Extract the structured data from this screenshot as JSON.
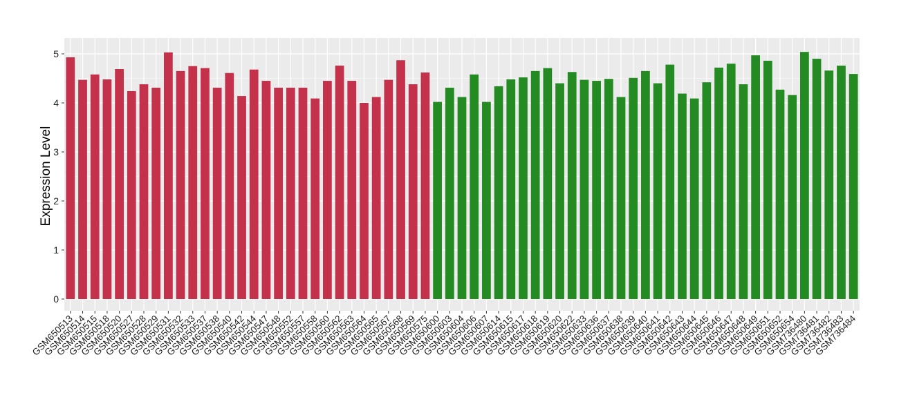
{
  "chart_data": {
    "type": "bar",
    "title": "",
    "xlabel": "",
    "ylabel": "Expression Level",
    "ylim": [
      -0.2,
      5.25
    ],
    "yticks": [
      0,
      1,
      2,
      3,
      4,
      5
    ],
    "grid": true,
    "legend": "none",
    "colors": {
      "group1": "#C3314A",
      "group2": "#238B22",
      "panel": "#EBEBEB",
      "grid": "#FFFFFF"
    },
    "categories": [
      "GSM650513",
      "GSM650514",
      "GSM650515",
      "GSM650518",
      "GSM650520",
      "GSM650527",
      "GSM650528",
      "GSM650529",
      "GSM650531",
      "GSM650532",
      "GSM650533",
      "GSM650537",
      "GSM650538",
      "GSM650540",
      "GSM650542",
      "GSM650544",
      "GSM650547",
      "GSM650548",
      "GSM650552",
      "GSM650557",
      "GSM650558",
      "GSM650560",
      "GSM650562",
      "GSM650563",
      "GSM650564",
      "GSM650565",
      "GSM650567",
      "GSM650568",
      "GSM650569",
      "GSM650575",
      "GSM650600",
      "GSM650603",
      "GSM650604",
      "GSM650606",
      "GSM650607",
      "GSM650614",
      "GSM650615",
      "GSM650617",
      "GSM650618",
      "GSM650619",
      "GSM650620",
      "GSM650622",
      "GSM650633",
      "GSM650636",
      "GSM650637",
      "GSM650638",
      "GSM650639",
      "GSM650640",
      "GSM650641",
      "GSM650642",
      "GSM650643",
      "GSM650644",
      "GSM650645",
      "GSM650646",
      "GSM650647",
      "GSM650648",
      "GSM650649",
      "GSM650651",
      "GSM650652",
      "GSM650654",
      "GSM736480",
      "GSM736481",
      "GSM736482",
      "GSM736483",
      "GSM736484"
    ],
    "values": [
      4.93,
      4.47,
      4.58,
      4.48,
      4.69,
      4.24,
      4.38,
      4.31,
      5.03,
      4.65,
      4.75,
      4.71,
      4.31,
      4.61,
      4.14,
      4.68,
      4.45,
      4.31,
      4.31,
      4.31,
      4.09,
      4.45,
      4.76,
      4.45,
      4.0,
      4.12,
      4.47,
      4.87,
      4.38,
      4.62,
      4.02,
      4.31,
      4.12,
      4.58,
      4.02,
      4.34,
      4.48,
      4.52,
      4.65,
      4.71,
      4.4,
      4.63,
      4.47,
      4.45,
      4.49,
      4.12,
      4.51,
      4.65,
      4.4,
      4.78,
      4.19,
      4.09,
      4.42,
      4.72,
      4.8,
      4.38,
      4.97,
      4.86,
      4.27,
      4.16,
      5.04,
      4.9,
      4.66,
      4.76,
      4.59
    ],
    "groups": [
      "group1",
      "group1",
      "group1",
      "group1",
      "group1",
      "group1",
      "group1",
      "group1",
      "group1",
      "group1",
      "group1",
      "group1",
      "group1",
      "group1",
      "group1",
      "group1",
      "group1",
      "group1",
      "group1",
      "group1",
      "group1",
      "group1",
      "group1",
      "group1",
      "group1",
      "group1",
      "group1",
      "group1",
      "group1",
      "group1",
      "group2",
      "group2",
      "group2",
      "group2",
      "group2",
      "group2",
      "group2",
      "group2",
      "group2",
      "group2",
      "group2",
      "group2",
      "group2",
      "group2",
      "group2",
      "group2",
      "group2",
      "group2",
      "group2",
      "group2",
      "group2",
      "group2",
      "group2",
      "group2",
      "group2",
      "group2",
      "group2",
      "group2",
      "group2",
      "group2",
      "group2",
      "group2",
      "group2",
      "group2",
      "group2"
    ]
  }
}
